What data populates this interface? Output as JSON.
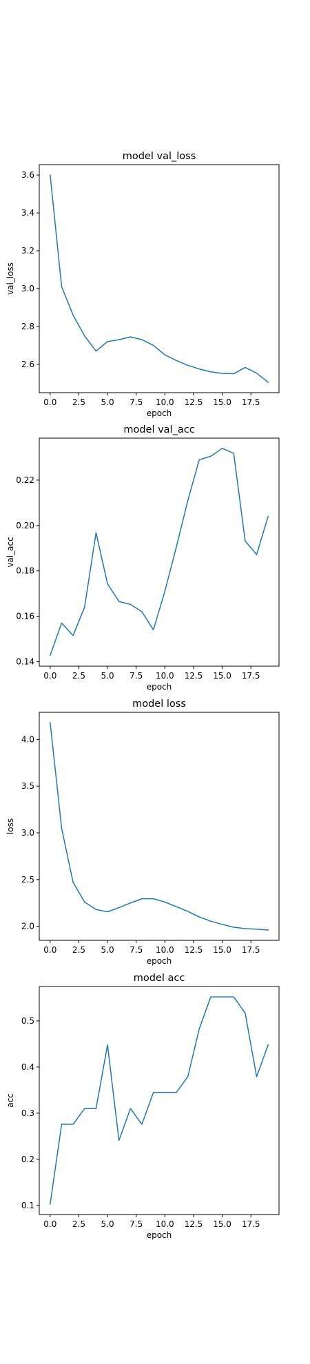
{
  "line_color": "#1f77b4",
  "chart_data": [
    {
      "type": "line",
      "title": "model val_loss",
      "xlabel": "epoch",
      "ylabel": "val_loss",
      "x": [
        0,
        1,
        2,
        3,
        4,
        5,
        6,
        7,
        8,
        9,
        10,
        11,
        12,
        13,
        14,
        15,
        16,
        17,
        18,
        19
      ],
      "series": [
        {
          "values": [
            3.6,
            3.01,
            2.86,
            2.75,
            2.67,
            2.72,
            2.73,
            2.745,
            2.73,
            2.7,
            2.65,
            2.62,
            2.595,
            2.575,
            2.56,
            2.552,
            2.55,
            2.583,
            2.553,
            2.505
          ]
        }
      ],
      "xlim": [
        -0.95,
        19.95
      ],
      "ylim": [
        2.45,
        3.655
      ],
      "xticks": [
        0,
        2.5,
        5,
        7.5,
        10,
        12.5,
        15,
        17.5
      ],
      "xtick_labels": [
        "0.0",
        "2.5",
        "5.0",
        "7.5",
        "10.0",
        "12.5",
        "15.0",
        "17.5"
      ],
      "yticks": [
        2.6,
        2.8,
        3.0,
        3.2,
        3.4,
        3.6
      ],
      "ytick_labels": [
        "2.6",
        "2.8",
        "3.0",
        "3.2",
        "3.4",
        "3.6"
      ],
      "grid": false
    },
    {
      "type": "line",
      "title": "model val_acc",
      "xlabel": "epoch",
      "ylabel": "val_acc",
      "x": [
        0,
        1,
        2,
        3,
        4,
        5,
        6,
        7,
        8,
        9,
        10,
        11,
        12,
        13,
        14,
        15,
        16,
        17,
        18,
        19
      ],
      "series": [
        {
          "values": [
            0.1427,
            0.157,
            0.1515,
            0.164,
            0.1968,
            0.1743,
            0.1665,
            0.1652,
            0.162,
            0.154,
            0.171,
            0.1905,
            0.211,
            0.229,
            0.2305,
            0.234,
            0.2318,
            0.1932,
            0.1872,
            0.204
          ]
        }
      ],
      "xlim": [
        -0.95,
        19.95
      ],
      "ylim": [
        0.138,
        0.2385
      ],
      "xticks": [
        0,
        2.5,
        5,
        7.5,
        10,
        12.5,
        15,
        17.5
      ],
      "xtick_labels": [
        "0.0",
        "2.5",
        "5.0",
        "7.5",
        "10.0",
        "12.5",
        "15.0",
        "17.5"
      ],
      "yticks": [
        0.14,
        0.16,
        0.18,
        0.2,
        0.22
      ],
      "ytick_labels": [
        "0.14",
        "0.16",
        "0.18",
        "0.20",
        "0.22"
      ],
      "grid": false
    },
    {
      "type": "line",
      "title": "model loss",
      "xlabel": "epoch",
      "ylabel": "loss",
      "x": [
        0,
        1,
        2,
        3,
        4,
        5,
        6,
        7,
        8,
        9,
        10,
        11,
        12,
        13,
        14,
        15,
        16,
        17,
        18,
        19
      ],
      "series": [
        {
          "values": [
            4.18,
            3.05,
            2.47,
            2.26,
            2.18,
            2.155,
            2.2,
            2.25,
            2.295,
            2.295,
            2.26,
            2.21,
            2.16,
            2.1,
            2.055,
            2.02,
            1.99,
            1.975,
            1.97,
            1.96
          ]
        }
      ],
      "xlim": [
        -0.95,
        19.95
      ],
      "ylim": [
        1.85,
        4.29
      ],
      "xticks": [
        0,
        2.5,
        5,
        7.5,
        10,
        12.5,
        15,
        17.5
      ],
      "xtick_labels": [
        "0.0",
        "2.5",
        "5.0",
        "7.5",
        "10.0",
        "12.5",
        "15.0",
        "17.5"
      ],
      "yticks": [
        2.0,
        2.5,
        3.0,
        3.5,
        4.0
      ],
      "ytick_labels": [
        "2.0",
        "2.5",
        "3.0",
        "3.5",
        "4.0"
      ],
      "grid": false
    },
    {
      "type": "line",
      "title": "model acc",
      "xlabel": "epoch",
      "ylabel": "acc",
      "x": [
        0,
        1,
        2,
        3,
        4,
        5,
        6,
        7,
        8,
        9,
        10,
        11,
        12,
        13,
        14,
        15,
        16,
        17,
        18,
        19
      ],
      "series": [
        {
          "values": [
            0.103,
            0.276,
            0.276,
            0.31,
            0.31,
            0.448,
            0.241,
            0.31,
            0.276,
            0.345,
            0.345,
            0.345,
            0.379,
            0.483,
            0.552,
            0.552,
            0.552,
            0.517,
            0.379,
            0.448
          ]
        }
      ],
      "xlim": [
        -0.95,
        19.95
      ],
      "ylim": [
        0.0805,
        0.5745
      ],
      "xticks": [
        0,
        2.5,
        5,
        7.5,
        10,
        12.5,
        15,
        17.5
      ],
      "xtick_labels": [
        "0.0",
        "2.5",
        "5.0",
        "7.5",
        "10.0",
        "12.5",
        "15.0",
        "17.5"
      ],
      "yticks": [
        0.1,
        0.2,
        0.3,
        0.4,
        0.5
      ],
      "ytick_labels": [
        "0.1",
        "0.2",
        "0.3",
        "0.4",
        "0.5"
      ],
      "grid": false
    }
  ]
}
